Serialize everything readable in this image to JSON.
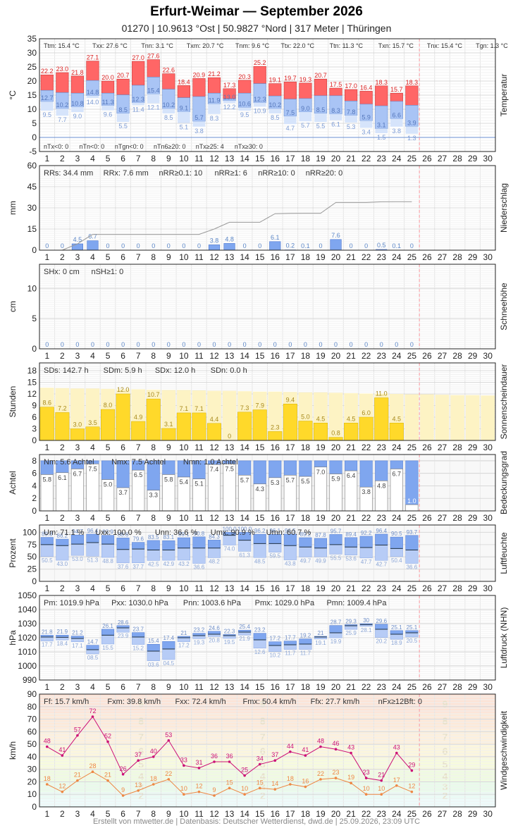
{
  "header": {
    "title": "Erfurt-Weimar  —  September 2026",
    "subtitle": "01270  |  10.9613 °Ost  |  50.9827 °Nord  |  317 Meter  |  Thüringen",
    "footer": "Erstellt von mtwetter.de | Datenbasis: Deutscher Wetterdienst, dwd.de | 25.09.2026, 23:09 UTC"
  },
  "chart_data": [
    {
      "type": "bar",
      "name": "temperature",
      "ylabel": "°C",
      "side_label": "Temperatur",
      "ylim": [
        -5,
        35
      ],
      "yticks": [
        -5,
        0,
        5,
        10,
        15,
        20,
        25,
        30,
        35
      ],
      "days": [
        1,
        2,
        3,
        4,
        5,
        6,
        7,
        8,
        9,
        10,
        11,
        12,
        13,
        14,
        15,
        16,
        17,
        18,
        19,
        20,
        21,
        22,
        23,
        24,
        25,
        26,
        27,
        28,
        29,
        30
      ],
      "tmax": [
        22.2,
        23.0,
        21.8,
        27.1,
        20.0,
        20.7,
        27.0,
        27.6,
        22.6,
        18.4,
        20.9,
        21.2,
        17.3,
        20.3,
        25.2,
        19.1,
        19.7,
        19.3,
        20.7,
        17.5,
        17.0,
        16.4,
        18.3,
        15.7,
        18.3
      ],
      "tmean": [
        16.7,
        15.9,
        15.7,
        20.2,
        15.7,
        15.1,
        18.5,
        21.4,
        17.1,
        14.1,
        14.5,
        15.7,
        13.7,
        15.7,
        19.1,
        14.7,
        13.6,
        13.8,
        14.8,
        14.8,
        12.9,
        11.8,
        11.2,
        12.8,
        11.4
      ],
      "tmin": [
        12.7,
        10.2,
        10.8,
        14.8,
        11.3,
        8.5,
        12.3,
        15.4,
        10.2,
        9.1,
        5.7,
        11.9,
        13.0,
        10.6,
        12.3,
        10.2,
        7.5,
        9.0,
        8.5,
        8.3,
        7.8,
        5.9,
        3.1,
        6.6,
        3.9
      ],
      "tlow": [
        9.5,
        7.7,
        9.0,
        14.0,
        9.6,
        5.5,
        11.4,
        12.1,
        8.5,
        5.1,
        3.8,
        8.3,
        12.2,
        9.5,
        10.9,
        8.5,
        4.7,
        5.7,
        5.5,
        6.1,
        5.3,
        3.4,
        1.5,
        3.8,
        1.3
      ],
      "stats_top": [
        "Ttm: 15.4 °C",
        "Txx: 27.6 °C",
        "Tnn: 3.1 °C",
        "Txm: 20.7 °C",
        "Tnm: 9.6 °C",
        "Ttx: 22.0 °C",
        "Ttn: 11.3 °C",
        "Txn: 15.7 °C",
        "Tnx: 15.4 °C",
        "Tgn: 1.3 °C"
      ],
      "stats_bottom": [
        "nTx<0: 0",
        "nTn<0: 0",
        "nTgn<0: 0",
        "nTn6≥20: 0",
        "nTx≥25: 4",
        "nTx≥30: 0"
      ]
    },
    {
      "type": "bar",
      "name": "precipitation",
      "ylabel": "mm",
      "side_label": "Niederschlag",
      "ylim": [
        0,
        60
      ],
      "yticks": [
        0,
        15,
        30,
        45,
        60
      ],
      "values": [
        0,
        0,
        4.5,
        6.7,
        0,
        0,
        0,
        0,
        0,
        0,
        0,
        3.8,
        4.8,
        0,
        0,
        6.1,
        0.2,
        0.1,
        0,
        7.6,
        0,
        0,
        0.5,
        0.1,
        0
      ],
      "cumulative": [
        0,
        0,
        4.5,
        11.2,
        11.2,
        11.2,
        11.2,
        11.2,
        11.2,
        11.2,
        11.2,
        15.0,
        19.8,
        19.8,
        19.8,
        25.9,
        26.1,
        26.2,
        26.2,
        33.8,
        33.8,
        33.8,
        34.3,
        34.4,
        34.4
      ],
      "stats": [
        "RRs: 34.4 mm",
        "RRx: 7.6 mm",
        "nRR≥0.1: 10",
        "nRR≥1: 6",
        "nRR≥10: 0",
        "nRR≥20: 0"
      ]
    },
    {
      "type": "bar",
      "name": "snow",
      "ylabel": "cm",
      "side_label": "Schneehöhe",
      "ylim": [
        0,
        14
      ],
      "yticks": [
        0,
        5,
        10
      ],
      "values": [
        0,
        0,
        0,
        0,
        0,
        0,
        0,
        0,
        0,
        0,
        0,
        0,
        0,
        0,
        0,
        0,
        0,
        0,
        0,
        0,
        0,
        0,
        0,
        0,
        0
      ],
      "stats": [
        "SHx: 0 cm",
        "nSH≥1: 0"
      ]
    },
    {
      "type": "bar",
      "name": "sunshine",
      "ylabel": "Stunden",
      "side_label": "Sonnenscheindauer",
      "ylim": [
        0,
        20
      ],
      "yticks": [
        0,
        3,
        6,
        9,
        12,
        15,
        18
      ],
      "values": [
        8.6,
        7.2,
        3.0,
        3.5,
        8.0,
        12.0,
        4.9,
        10.7,
        3.1,
        7.1,
        7.1,
        4.4,
        0,
        7.3,
        7.9,
        2.3,
        9.4,
        5.0,
        4.5,
        0.8,
        4.5,
        6.0,
        11.0,
        4.5,
        0
      ],
      "possible": [
        13.6,
        13.5,
        13.4,
        13.4,
        13.3,
        13.2,
        13.2,
        13.1,
        13.0,
        13.0,
        12.9,
        12.8,
        12.8,
        12.7,
        12.6,
        12.6,
        12.5,
        12.4,
        12.4,
        12.3,
        12.2,
        12.1,
        12.1,
        12.0,
        11.9,
        11.9,
        11.8,
        11.7,
        11.7,
        11.6
      ],
      "stats": [
        "SDs: 142.7 h",
        "SDm: 5.9 h",
        "SDx: 12.0 h",
        "SDn: 0.0 h"
      ]
    },
    {
      "type": "bar",
      "name": "cloud",
      "ylabel": "Achtel",
      "side_label": "Bedeckungsgrad",
      "ylim": [
        0,
        9
      ],
      "yticks": [
        0,
        2,
        4,
        6,
        8
      ],
      "values": [
        5.8,
        6.1,
        6.7,
        7.5,
        5.0,
        3.7,
        6.5,
        3.3,
        5.8,
        5.4,
        5.1,
        7.4,
        7.5,
        5.7,
        4.3,
        5.3,
        5.7,
        5.5,
        7.0,
        5.9,
        6.4,
        3.8,
        4.8,
        6.7,
        1.0
      ],
      "stats": [
        "Nm: 5.6 Achtel",
        "Nmx: 7.5 Achtel",
        "Nmn: 1.0 Achtel"
      ]
    },
    {
      "type": "bar",
      "name": "humidity",
      "ylabel": "Prozent",
      "side_label": "Luftfeuchte",
      "ylim": [
        0,
        115
      ],
      "yticks": [
        0,
        25,
        50,
        75,
        100
      ],
      "max": [
        89.8,
        86.2,
        94.7,
        96.4,
        93.9,
        88.6,
        79.6,
        83.5,
        83.1,
        89.1,
        90.8,
        84.3,
        100.0,
        100.0,
        96.2,
        96.1,
        96.5,
        89.2,
        87.8,
        95.7,
        89.4,
        92.2,
        96.4,
        90.5,
        93.7
      ],
      "mean": [
        75,
        73,
        76,
        79,
        76,
        65,
        66,
        64,
        64,
        68,
        68,
        68,
        94,
        84,
        77,
        77,
        73,
        70,
        68,
        75,
        70,
        69,
        74,
        67,
        64
      ],
      "min": [
        50.5,
        43.0,
        53.0,
        51.3,
        48.8,
        37.6,
        37.7,
        42.5,
        42.9,
        43.2,
        36.6,
        48.2,
        74.0,
        61.3,
        48.5,
        59.5,
        43.8,
        49.7,
        49.9,
        55.5,
        53.6,
        47.7,
        42.7,
        50.4,
        36.6
      ],
      "stats": [
        "Um: 71.1 %",
        "Uxx: 100.0 %",
        "Unn: 36.6 %",
        "Umx: 90.9 %",
        "Umn: 60.7 %"
      ]
    },
    {
      "type": "bar",
      "name": "pressure",
      "ylabel": "hPa",
      "side_label": "Luftdruck (NHN)",
      "ylim": [
        990,
        1050
      ],
      "yticks": [
        990,
        1000,
        1010,
        1020,
        1030,
        1040,
        1050
      ],
      "max": [
        1021.8,
        1021.9,
        1021.2,
        1014.7,
        1026.1,
        1028.6,
        1023.7,
        1015.4,
        1017.4,
        1021.0,
        1023.2,
        1024.6,
        1022.3,
        1025.4,
        1023.2,
        1017.2,
        1017.7,
        1019.2,
        1021.0,
        1028.7,
        1029.3,
        1030.0,
        1029.6,
        1025.1,
        1025.1
      ],
      "mean": [
        1020.5,
        1020.3,
        1019.5,
        1011.5,
        1021.8,
        1027.0,
        1020.5,
        1010.5,
        1012.0,
        1020.0,
        1021.5,
        1022.5,
        1021.5,
        1024.0,
        1018.5,
        1014.5,
        1015.0,
        1015.5,
        1020.5,
        1023.5,
        1028.5,
        1029.3,
        1026.0,
        1022.5,
        1023.5
      ],
      "min": [
        1017.7,
        1018.4,
        1017.1,
        1008.5,
        1015.5,
        1023.9,
        1015.2,
        1003.6,
        1004.5,
        1017.2,
        1019.3,
        1020.8,
        1019.5,
        1021.9,
        1012.6,
        1010.2,
        1011.7,
        1011.7,
        1019.1,
        1019.9,
        1025.9,
        1028.1,
        1020.2,
        1018.9,
        1020.5
      ],
      "stats": [
        "Pm: 1019.9 hPa",
        "Pxx: 1030.0 hPa",
        "Pnn: 1003.6 hPa",
        "Pmx: 1029.0 hPa",
        "Pmn: 1009.4 hPa"
      ]
    },
    {
      "type": "line",
      "name": "wind",
      "ylabel": "km/h",
      "side_label": "Windgeschwindigkeit",
      "ylim": [
        0,
        90
      ],
      "yticks": [
        0,
        10,
        20,
        30,
        40,
        50,
        60,
        70,
        80,
        90
      ],
      "beaufort_labels": [
        "2",
        "3",
        "4",
        "5",
        "6",
        "7",
        "8",
        "9"
      ],
      "series": [
        {
          "name": "Fx",
          "color": "#cc1177",
          "values": [
            48,
            41,
            57,
            72,
            52,
            26,
            37,
            40,
            53,
            33,
            31,
            36,
            36,
            25,
            34,
            37,
            44,
            41,
            48,
            46,
            43,
            23,
            21,
            43,
            29
          ]
        },
        {
          "name": "Fm",
          "color": "#ee8844",
          "values": [
            18,
            12,
            21,
            28,
            21,
            9,
            13,
            18,
            22,
            10,
            12,
            9,
            15,
            10,
            15,
            14,
            18,
            16,
            22,
            23,
            19,
            10,
            10,
            17,
            12
          ]
        }
      ],
      "stats": [
        "Ff: 15.7 km/h",
        "Fxm: 39.8 km/h",
        "Fxx: 72.4 km/h",
        "Fmx: 50.4 km/h",
        "Ffx: 27.7 km/h",
        "nFx≥12Bft: 0"
      ]
    }
  ]
}
